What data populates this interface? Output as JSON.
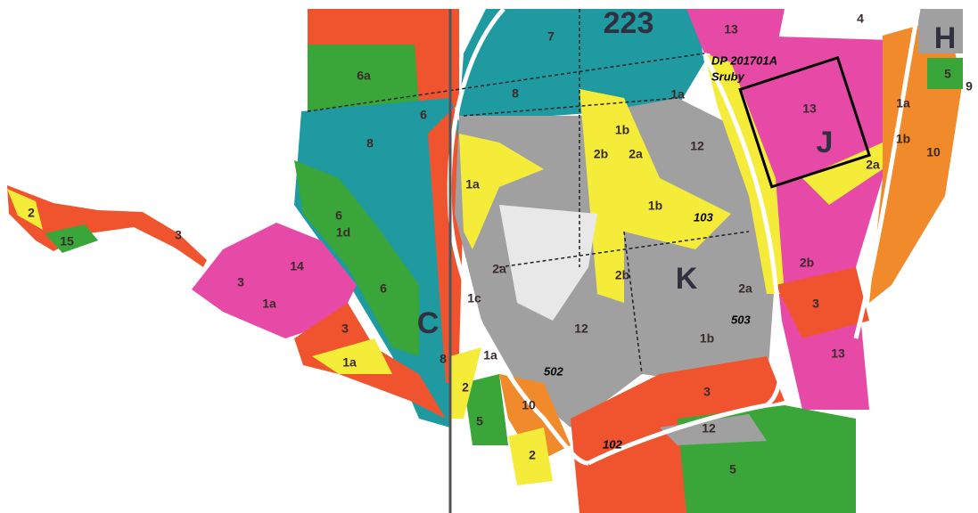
{
  "map": {
    "labels": [
      "223",
      "DP 201701A",
      "Sruby",
      "C",
      "K",
      "J",
      "H",
      "7",
      "13",
      "4",
      "6a",
      "8",
      "8",
      "6",
      "1a",
      "1b",
      "12",
      "2b",
      "2a",
      "13",
      "5",
      "9",
      "1a",
      "1b",
      "10",
      "2a",
      "1a",
      "1b",
      "103",
      "2b",
      "6",
      "1d",
      "14",
      "3",
      "1a",
      "6",
      "3",
      "1a",
      "2a",
      "1c",
      "12",
      "2b",
      "2a",
      "503",
      "1b",
      "3",
      "13",
      "1a",
      "502",
      "8",
      "2",
      "5",
      "10",
      "2",
      "102",
      "3",
      "12",
      "5",
      "2",
      "15",
      "3"
    ]
  }
}
